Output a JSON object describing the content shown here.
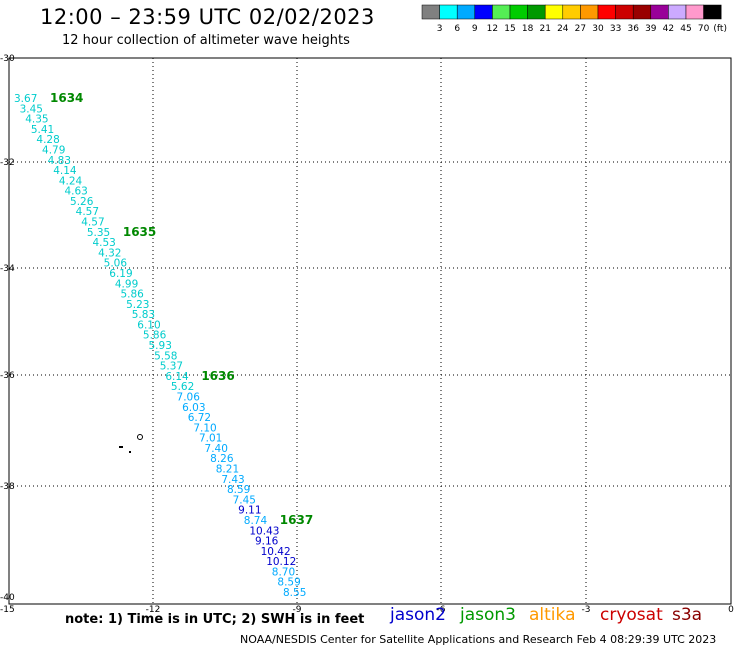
{
  "header": {
    "title": "12:00 – 23:59 UTC 02/02/2023",
    "subtitle": "12 hour collection of altimeter wave heights"
  },
  "color_scale": {
    "labels": [
      "3",
      "6",
      "9",
      "12",
      "15",
      "18",
      "21",
      "24",
      "27",
      "30",
      "33",
      "36",
      "39",
      "42",
      "45",
      "70"
    ],
    "unit_label": "(ft)",
    "colors": [
      "#808080",
      "#00ffff",
      "#00aaff",
      "#0000ff",
      "#55ee55",
      "#00cc00",
      "#009900",
      "#ffff00",
      "#ffcc00",
      "#ff9900",
      "#ff0000",
      "#cc0000",
      "#990000",
      "#990099",
      "#ccaaff",
      "#ff99cc",
      "#000000"
    ]
  },
  "map": {
    "lon_ticks": [
      "-15",
      "-12",
      "-9",
      "-6",
      "-3",
      "0"
    ],
    "lat_ticks": [
      "-30",
      "-32",
      "-34",
      "-36",
      "-38",
      "-40"
    ]
  },
  "track": {
    "pass_labels": [
      "1634",
      "1635",
      "1636",
      "1637"
    ],
    "points": [
      {
        "value": "3.67",
        "color": "#00cccc"
      },
      {
        "value": "3.45",
        "color": "#00cccc"
      },
      {
        "value": "4.35",
        "color": "#00cccc"
      },
      {
        "value": "5.41",
        "color": "#00cccc"
      },
      {
        "value": "4.28",
        "color": "#00cccc"
      },
      {
        "value": "4.79",
        "color": "#00cccc"
      },
      {
        "value": "4.83",
        "color": "#00cccc"
      },
      {
        "value": "4.14",
        "color": "#00cccc"
      },
      {
        "value": "4.24",
        "color": "#00cccc"
      },
      {
        "value": "4.63",
        "color": "#00cccc"
      },
      {
        "value": "5.26",
        "color": "#00cccc"
      },
      {
        "value": "4.57",
        "color": "#00cccc"
      },
      {
        "value": "4.57",
        "color": "#00cccc"
      },
      {
        "value": "5.35",
        "color": "#00cccc"
      },
      {
        "value": "4.53",
        "color": "#00cccc"
      },
      {
        "value": "4.32",
        "color": "#00cccc"
      },
      {
        "value": "5.06",
        "color": "#00cccc"
      },
      {
        "value": "6.19",
        "color": "#00cccc"
      },
      {
        "value": "4.99",
        "color": "#00cccc"
      },
      {
        "value": "5.86",
        "color": "#00cccc"
      },
      {
        "value": "5.23",
        "color": "#00cccc"
      },
      {
        "value": "5.83",
        "color": "#00cccc"
      },
      {
        "value": "6.10",
        "color": "#00cccc"
      },
      {
        "value": "5.86",
        "color": "#00cccc"
      },
      {
        "value": "5.93",
        "color": "#00cccc"
      },
      {
        "value": "5.58",
        "color": "#00cccc"
      },
      {
        "value": "5.37",
        "color": "#00cccc"
      },
      {
        "value": "6.14",
        "color": "#00cccc"
      },
      {
        "value": "5.62",
        "color": "#00cccc"
      },
      {
        "value": "7.06",
        "color": "#00aaff"
      },
      {
        "value": "6.03",
        "color": "#00aaff"
      },
      {
        "value": "6.72",
        "color": "#00aaff"
      },
      {
        "value": "7.10",
        "color": "#00aaff"
      },
      {
        "value": "7.01",
        "color": "#00aaff"
      },
      {
        "value": "7.40",
        "color": "#00aaff"
      },
      {
        "value": "8.26",
        "color": "#00aaff"
      },
      {
        "value": "8.21",
        "color": "#00aaff"
      },
      {
        "value": "7.43",
        "color": "#00aaff"
      },
      {
        "value": "8.59",
        "color": "#00aaff"
      },
      {
        "value": "7.45",
        "color": "#00aaff"
      },
      {
        "value": "9.11",
        "color": "#0000cc"
      },
      {
        "value": "8.74",
        "color": "#00aaff"
      },
      {
        "value": "10.43",
        "color": "#0000cc"
      },
      {
        "value": "9.16",
        "color": "#0000cc"
      },
      {
        "value": "10.42",
        "color": "#0000cc"
      },
      {
        "value": "10.12",
        "color": "#0000cc"
      },
      {
        "value": "8.70",
        "color": "#00aaff"
      },
      {
        "value": "8.59",
        "color": "#00aaff"
      },
      {
        "value": "8.55",
        "color": "#00aaff"
      }
    ]
  },
  "footer": {
    "note": "note: 1) Time is in UTC; 2) SWH is in feet",
    "credit": "NOAA/NESDIS Center for Satellite Applications and Research    Feb  4 08:29:39 UTC 2023",
    "satellites": [
      {
        "name": "jason2",
        "color": "#0000cc"
      },
      {
        "name": "jason3",
        "color": "#009900"
      },
      {
        "name": "altika",
        "color": "#ff9900"
      },
      {
        "name": "cryosat",
        "color": "#cc0000"
      },
      {
        "name": "s3a",
        "color": "#880000"
      }
    ]
  }
}
